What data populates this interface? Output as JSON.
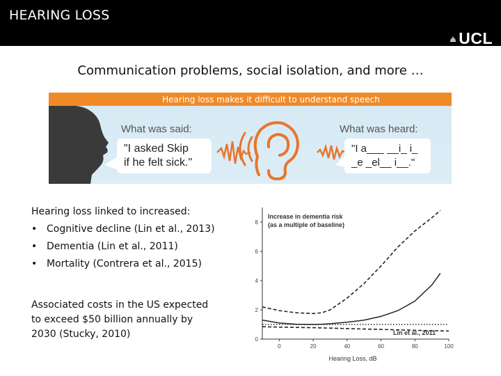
{
  "header": {
    "title": "HEARING LOSS",
    "logo": "UCL",
    "bar_color": "#000000"
  },
  "subtitle": "Communication problems, social isolation, and more …",
  "infographic": {
    "banner": "Hearing loss makes it difficult to understand speech",
    "banner_color": "#f08a28",
    "said_label": "What was said:",
    "said_text": "\"I asked Skip\nif he felt sick.\"",
    "heard_label": "What was heard:",
    "heard_text": "\"I a___ __i_ i_\n_e _el__ i__.\"",
    "icons": [
      "head-silhouette",
      "ear",
      "sound-wave"
    ]
  },
  "body": {
    "heading": "Hearing loss linked to increased:",
    "bullet_glyph": "•",
    "bullets": [
      "Cognitive decline (Lin et al., 2013)",
      "Dementia (Lin et al., 2011)",
      "Mortality (Contrera et al., 2015)"
    ],
    "costs": "Associated costs in the US expected to exceed $50 billion annually by 2030 (Stucky, 2010)"
  },
  "chart_data": {
    "type": "line",
    "title": "Increase in dementia risk (as a multiple of baseline)",
    "title_lines": [
      "Increase in dementia risk",
      "(as a multiple of baseline)"
    ],
    "xlabel": "Hearing Loss, dB",
    "ylabel": "",
    "xlim": [
      -10,
      100
    ],
    "ylim": [
      0,
      9
    ],
    "xticks": [
      0,
      20,
      40,
      60,
      80,
      100
    ],
    "yticks": [
      0,
      2,
      4,
      6,
      8
    ],
    "annotation": "Lin et al., 2011",
    "grid": false,
    "series": [
      {
        "x": [
          -10,
          0,
          10,
          20,
          25,
          30,
          40,
          50,
          60,
          70,
          80,
          90,
          95
        ],
        "y": [
          1.3,
          1.1,
          1.02,
          1.0,
          1.02,
          1.05,
          1.15,
          1.3,
          1.55,
          1.95,
          2.6,
          3.7,
          4.5
        ],
        "style": "solid"
      },
      {
        "x": [
          -10,
          0,
          10,
          20,
          25,
          30,
          40,
          50,
          60,
          70,
          80,
          90,
          95
        ],
        "y": [
          2.2,
          1.95,
          1.8,
          1.75,
          1.8,
          2.0,
          2.8,
          3.8,
          5.0,
          6.3,
          7.4,
          8.3,
          8.8
        ],
        "style": "dashed"
      },
      {
        "x": [
          -10,
          0,
          20,
          40,
          60,
          80,
          100
        ],
        "y": [
          0.85,
          0.82,
          0.78,
          0.72,
          0.66,
          0.6,
          0.55
        ],
        "style": "dashed"
      },
      {
        "x": [
          -10,
          0,
          20,
          40,
          60,
          80,
          100
        ],
        "y": [
          1.0,
          1.0,
          1.0,
          1.0,
          1.0,
          1.0,
          1.0
        ],
        "style": "dotted"
      }
    ]
  }
}
